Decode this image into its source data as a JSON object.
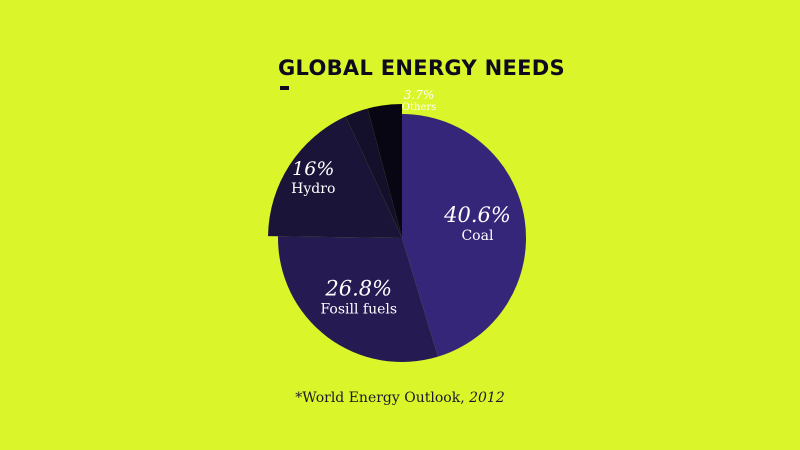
{
  "colors": {
    "background": "#daf52a",
    "coal": "#36267a",
    "fossil_fuels": "#251a52",
    "hydro": "#1a1438",
    "small_dark": "#14102c",
    "others": "#080612",
    "text_dark": "#0e0b1c"
  },
  "chart_data": {
    "type": "pie",
    "title": "GLOBAL ENERGY NEEDS",
    "start_angle_deg": 0,
    "direction": "clockwise",
    "slices": [
      {
        "key": "coal",
        "label": "Coal",
        "value": 40.6,
        "value_label": "40.6%",
        "color": "#36267a",
        "exploded": false
      },
      {
        "key": "fossil_fuels",
        "label": "Fosill fuels",
        "value": 26.8,
        "value_label": "26.8%",
        "color": "#251a52",
        "exploded": false
      },
      {
        "key": "hydro",
        "label": "Hydro",
        "value": 16,
        "value_label": "16%",
        "color": "#1a1438",
        "exploded": true
      },
      {
        "key": "unlabeled",
        "label": "",
        "value": 2.5,
        "value_label": "",
        "color": "#14102c",
        "exploded": true
      },
      {
        "key": "others",
        "label": "Others",
        "value": 3.7,
        "value_label": "3.7%",
        "color": "#080612",
        "exploded": true
      }
    ],
    "source": {
      "text": "*World Energy Outlook, ",
      "year": "2012"
    }
  }
}
